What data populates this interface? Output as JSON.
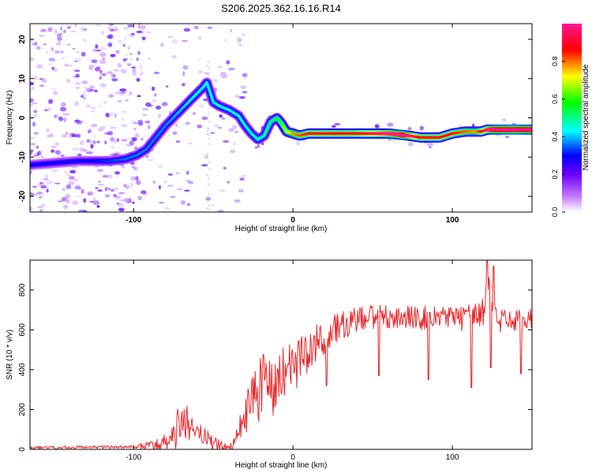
{
  "title": "S206.2025.362.16.16.R14",
  "colors": {
    "snr_line": "#e8262a",
    "axis": "#000000",
    "scatter": "#9a55ff"
  },
  "chart_data": [
    {
      "type": "heatmap",
      "name": "spectrogram",
      "xlabel": "Height of straight line (km)",
      "ylabel": "Frequency (Hz)",
      "xlim": [
        -165,
        150
      ],
      "ylim": [
        -24,
        24
      ],
      "x_ticks": [
        -100,
        0,
        100
      ],
      "y_ticks": [
        -20,
        -10,
        0,
        10,
        20
      ],
      "colorbar": {
        "label": "Normalized spectral amplitude",
        "range": [
          0,
          1
        ],
        "ticks": [
          0.0,
          0.2,
          0.4,
          0.6,
          0.8
        ],
        "colormap": [
          "#ffffff",
          "#c87dff",
          "#6a00ff",
          "#0000ff",
          "#00ffff",
          "#00ff00",
          "#ffff00",
          "#ff0000",
          "#ff1493"
        ]
      },
      "ridge": {
        "x": [
          -165,
          -150,
          -135,
          -125,
          -115,
          -105,
          -98,
          -92,
          -86,
          -80,
          -74,
          -68,
          -62,
          -57,
          -54,
          -50,
          -46,
          -40,
          -34,
          -30,
          -26,
          -22,
          -18,
          -14,
          -10,
          -7,
          -4,
          0,
          4,
          10,
          20,
          40,
          60,
          72,
          80,
          88,
          92,
          100,
          108,
          112,
          118,
          122,
          126,
          135,
          150
        ],
        "freq": [
          -12,
          -11.5,
          -11,
          -11,
          -11,
          -10.5,
          -9.5,
          -8,
          -5,
          -2,
          0.5,
          3,
          5.5,
          7.5,
          9,
          4,
          3,
          2,
          0.5,
          -2,
          -4,
          -5.5,
          -4.5,
          -1,
          0,
          -1.5,
          -3.5,
          -4,
          -4.5,
          -4,
          -4,
          -4,
          -4,
          -4.5,
          -5,
          -5,
          -5,
          -4,
          -3.5,
          -3.5,
          -3.5,
          -3,
          -3,
          -3,
          -3
        ]
      },
      "ridge_amplitude": {
        "x": [
          -165,
          -130,
          -100,
          -80,
          -60,
          -40,
          -25,
          -10,
          0,
          10,
          40,
          70,
          80,
          100,
          115,
          125,
          140,
          150
        ],
        "values": [
          0.25,
          0.25,
          0.3,
          0.3,
          0.35,
          0.35,
          0.35,
          0.4,
          0.55,
          0.6,
          0.6,
          0.75,
          0.6,
          0.6,
          0.55,
          0.75,
          0.8,
          0.75
        ]
      }
    },
    {
      "type": "line",
      "name": "snr",
      "xlabel": "Height of straight line (km)",
      "ylabel": "SNR (10 * v/v)",
      "xlim": [
        -165,
        150
      ],
      "ylim": [
        0,
        950
      ],
      "x_ticks": [
        -100,
        0,
        100
      ],
      "y_ticks": [
        0,
        200,
        400,
        600,
        800
      ],
      "envelope": {
        "x": [
          -165,
          -100,
          -85,
          -75,
          -72,
          -68,
          -64,
          -60,
          -52,
          -45,
          -38,
          -34,
          -30,
          -26,
          -22,
          -18,
          -14,
          -10,
          -6,
          -2,
          2,
          6,
          10,
          14,
          18,
          22,
          26,
          30,
          40,
          50,
          60,
          80,
          100,
          115,
          120,
          122,
          125,
          130,
          140,
          150
        ],
        "values": [
          8,
          12,
          20,
          60,
          120,
          150,
          120,
          80,
          40,
          15,
          10,
          100,
          160,
          240,
          300,
          330,
          310,
          340,
          380,
          400,
          420,
          460,
          480,
          520,
          560,
          580,
          600,
          620,
          650,
          670,
          660,
          660,
          660,
          660,
          700,
          860,
          700,
          640,
          650,
          650
        ]
      },
      "noise_amplitude": {
        "x": [
          -165,
          -100,
          -80,
          -70,
          -60,
          -40,
          -30,
          -20,
          -10,
          0,
          10,
          20,
          30,
          60,
          100,
          118,
          126,
          150
        ],
        "values": [
          8,
          8,
          40,
          110,
          60,
          15,
          100,
          180,
          150,
          120,
          110,
          90,
          70,
          60,
          60,
          80,
          60,
          60
        ]
      },
      "dips": [
        {
          "x": 21,
          "value": 320
        },
        {
          "x": 54,
          "value": 370
        },
        {
          "x": 85,
          "value": 350
        },
        {
          "x": 112,
          "value": 310
        },
        {
          "x": 124,
          "value": 410
        },
        {
          "x": 143,
          "value": 380
        }
      ],
      "peaks": [
        {
          "x": 122,
          "value": 950
        },
        {
          "x": 126,
          "value": 920
        }
      ]
    }
  ]
}
